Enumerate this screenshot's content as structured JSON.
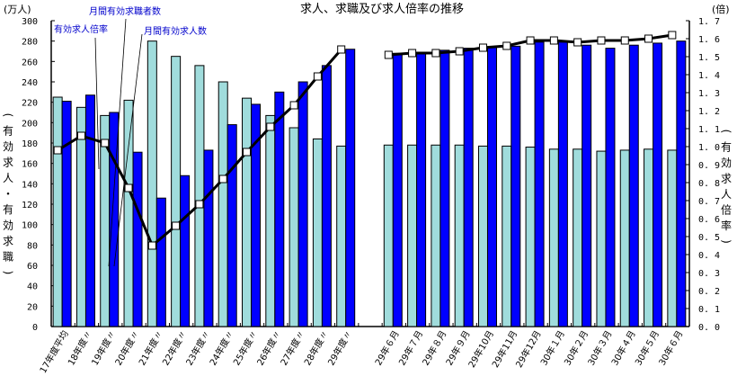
{
  "chart_data": {
    "type": "bar",
    "title": "求人、求職及び求人倍率の推移",
    "left_axis": {
      "unit": "(万人)",
      "label": "(有効求人・有効求職)",
      "ylim": [
        0,
        300
      ],
      "ticks": [
        0,
        20,
        40,
        60,
        80,
        100,
        120,
        140,
        160,
        180,
        200,
        220,
        240,
        260,
        280,
        300
      ]
    },
    "right_axis": {
      "unit": "(倍)",
      "label": "(有効求人倍率)",
      "ylim": [
        0.0,
        1.7
      ],
      "ticks": [
        "0.0",
        "0.1",
        "0.2",
        "0.3",
        "0.4",
        "0.5",
        "0.6",
        "0.7",
        "0.8",
        "0.9",
        "1.0",
        "1.1",
        "1.2",
        "1.3",
        "1.4",
        "1.5",
        "1.6",
        "1.7"
      ]
    },
    "categories": [
      "17年度平均",
      "18年度〃",
      "19年度〃",
      "20年度〃",
      "21年度〃",
      "22年度〃",
      "23年度〃",
      "24年度〃",
      "25年度〃",
      "26年度〃",
      "27年度〃",
      "28年度〃",
      "29年度〃",
      "",
      "29年６月",
      "29年７月",
      "29年８月",
      "29年９月",
      "29年10月",
      "29年11月",
      "29年12月",
      "30年１月",
      "30年２月",
      "30年３月",
      "30年４月",
      "30年５月",
      "30年６月"
    ],
    "series": [
      {
        "name": "月間有効求職者数",
        "type": "bar",
        "axis": "left",
        "color": "#a0dcdc",
        "values": [
          225,
          215,
          207,
          222,
          280,
          265,
          256,
          240,
          224,
          207,
          195,
          184,
          177,
          null,
          178,
          178,
          178,
          178,
          177,
          177,
          176,
          174,
          174,
          172,
          173,
          174,
          173
        ]
      },
      {
        "name": "月間有効求人数",
        "type": "bar",
        "axis": "left",
        "color": "#0000ff",
        "values": [
          221,
          227,
          210,
          171,
          126,
          148,
          173,
          198,
          218,
          230,
          240,
          256,
          272,
          null,
          268,
          269,
          271,
          273,
          274,
          275,
          279,
          279,
          276,
          273,
          276,
          278,
          280
        ]
      },
      {
        "name": "有効求人倍率",
        "type": "line",
        "axis": "right",
        "color": "#000000",
        "values": [
          0.98,
          1.06,
          1.02,
          0.77,
          0.45,
          0.56,
          0.68,
          0.82,
          0.97,
          1.11,
          1.23,
          1.39,
          1.54,
          null,
          1.51,
          1.52,
          1.52,
          1.53,
          1.55,
          1.56,
          1.59,
          1.59,
          1.58,
          1.59,
          1.59,
          1.6,
          1.62
        ]
      }
    ],
    "annotations": [
      {
        "text": "有効求人倍率",
        "x": 60,
        "y": 36,
        "target": [
          110,
          188
        ]
      },
      {
        "text": "月間有効求職者数",
        "x": 99,
        "y": 16,
        "target": [
          118,
          297
        ]
      },
      {
        "text": "月間有効求人数",
        "x": 160,
        "y": 38,
        "target": [
          124,
          297
        ]
      }
    ],
    "grid": false,
    "legend_position": "annotations"
  }
}
